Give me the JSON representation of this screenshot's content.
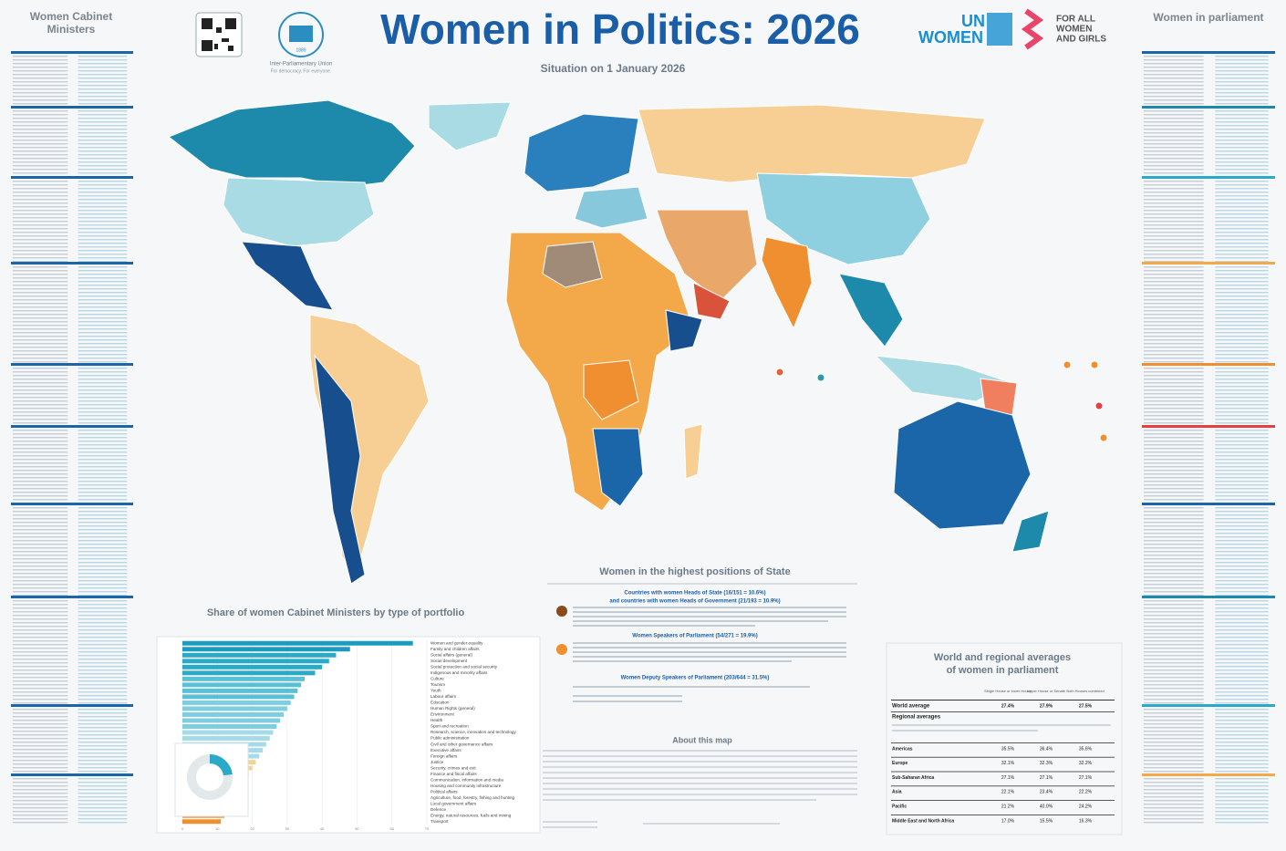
{
  "header": {
    "title": "Women in Politics: 2026",
    "subtitle": "Situation on 1 January 2026",
    "ipu_year": "1889",
    "ipu_name": "Inter-Parliamentary Union",
    "ipu_tagline": "For democracy. For everyone.",
    "un_lines": [
      "UN",
      "WOMEN"
    ],
    "for_all_lines": [
      "FOR ALL",
      "WOMEN",
      "AND GIRLS"
    ]
  },
  "left_panel": {
    "title_lines": [
      "Women Cabinet",
      "Ministers"
    ]
  },
  "right_panel": {
    "title": "Women in parliament"
  },
  "highest_positions": {
    "title": "Women in the highest positions of State",
    "heads_lines": [
      "Countries with women Heads of State (16/151 = 10.6%)",
      "and countries with women Heads of Government (21/193 = 10.9%)"
    ],
    "speakers": "Women Speakers of Parliament (54/271 = 19.9%)",
    "deputy": "Women Deputy Speakers of Parliament (203/644 = 31.5%)"
  },
  "about": {
    "title": "About this map"
  },
  "portfolio_chart": {
    "type": "bar",
    "title": "Share of women Cabinet Ministers by type of portfolio",
    "categories": [
      "Women and gender equality",
      "Family and children affairs",
      "Social affairs (general)",
      "Social development",
      "Social protection and social security",
      "Indigenous and minority affairs",
      "Culture",
      "Tourism",
      "Youth",
      "Labour affairs",
      "Education",
      "Human Rights (general)",
      "Environment",
      "Health",
      "Sport and recreation",
      "Research, science, innovation and technology",
      "Public administration",
      "Civil and other governance affairs",
      "Executive affairs",
      "Foreign affairs",
      "Justice",
      "Security, crimes and exit",
      "Finance and fiscal affairs",
      "Communication, information and media",
      "Housing and community infrastructure",
      "Political affairs",
      "Agriculture, food, forestry, fishing and hunting",
      "Local government affairs",
      "Defence",
      "Energy, natural resources, fuels and mining",
      "Transport"
    ],
    "values": [
      66,
      48,
      44,
      42,
      40,
      38,
      35,
      34,
      33,
      32,
      31,
      30,
      29,
      28,
      27,
      26,
      25,
      24,
      23,
      22,
      21,
      20,
      19,
      18,
      17,
      16,
      15,
      14,
      13,
      12,
      11
    ],
    "colors": [
      "#1b9bbf",
      "#1b9bbf",
      "#2aa9c9",
      "#2aa9c9",
      "#2aa9c9",
      "#2aa9c9",
      "#5bbfd6",
      "#5bbfd6",
      "#5bbfd6",
      "#5bbfd6",
      "#7ecde0",
      "#7ecde0",
      "#7ecde0",
      "#7ecde0",
      "#7ecde0",
      "#a5dbe8",
      "#a5dbe8",
      "#a5dbe8",
      "#a5dbe8",
      "#a5dbe8",
      "#f6d38d",
      "#f6d38d",
      "#f6d38d",
      "#f6c46a",
      "#f6c46a",
      "#f6c46a",
      "#f3a94a",
      "#f3a94a",
      "#f3a94a",
      "#ef8f2f",
      "#ef8f2f"
    ],
    "xlim": [
      0,
      70
    ],
    "xticks": [
      0,
      10,
      20,
      30,
      40,
      50,
      60,
      70
    ],
    "donut": {
      "value": 23,
      "color": "#2aa9c9"
    }
  },
  "averages": {
    "title_lines": [
      "World and regional averages",
      "of women in parliament"
    ],
    "columns": [
      "Single House or lower House",
      "Upper House or Senate",
      "Both Houses combined"
    ],
    "world": {
      "label": "World average",
      "values": [
        "27.4%",
        "27.9%",
        "27.5%"
      ]
    },
    "regional_heading": "Regional averages",
    "rows": [
      {
        "label": "Americas",
        "values": [
          "35.5%",
          "36.4%",
          "35.6%"
        ]
      },
      {
        "label": "Europe",
        "values": [
          "32.1%",
          "32.3%",
          "32.2%"
        ]
      },
      {
        "label": "Sub-Saharan Africa",
        "values": [
          "27.1%",
          "27.1%",
          "27.1%"
        ]
      },
      {
        "label": "Asia",
        "values": [
          "22.1%",
          "23.4%",
          "22.2%"
        ]
      },
      {
        "label": "Pacific",
        "values": [
          "21.2%",
          "40.0%",
          "24.2%"
        ]
      },
      {
        "label": "Middle East and North Africa",
        "values": [
          "17.0%",
          "15.5%",
          "16.3%"
        ]
      }
    ]
  }
}
